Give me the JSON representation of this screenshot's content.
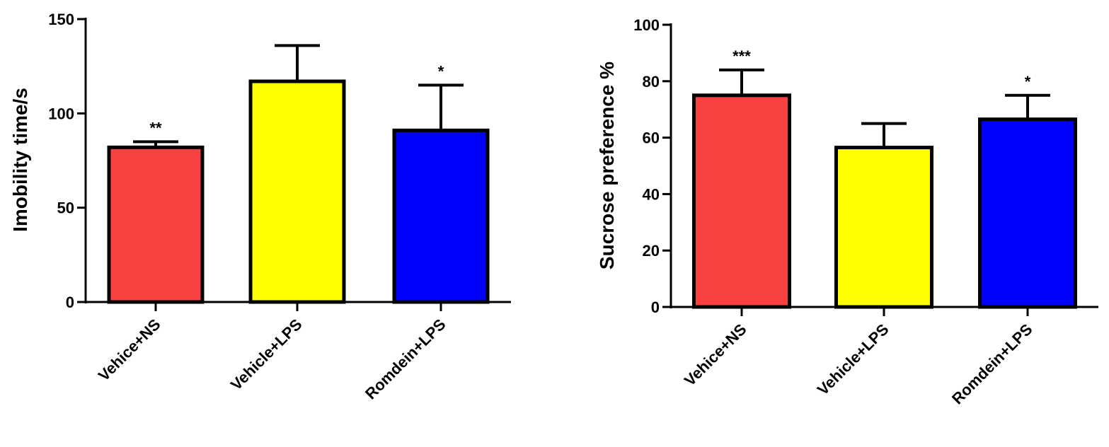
{
  "chart_data": [
    {
      "type": "bar",
      "title": "",
      "xlabel": "",
      "ylabel": "Imobility time/s",
      "ylim": [
        0,
        150
      ],
      "yticks": [
        0,
        50,
        100,
        150
      ],
      "categories": [
        "Vehice+NS",
        "Vehicle+LPS",
        "Romdein+LPS"
      ],
      "values": [
        82,
        117,
        91
      ],
      "error_upper": [
        85,
        136,
        115
      ],
      "colors": [
        "#f94141",
        "#ffff00",
        "#0000ff"
      ],
      "significance": [
        "**",
        "",
        "*"
      ]
    },
    {
      "type": "bar",
      "title": "",
      "xlabel": "",
      "ylabel": "Sucrose preference %",
      "ylim": [
        0,
        100
      ],
      "yticks": [
        0,
        20,
        40,
        60,
        80,
        100
      ],
      "categories": [
        "Vehice+NS",
        "Vehicle+LPS",
        "Romdein+LPS"
      ],
      "values": [
        75,
        56.5,
        66.5
      ],
      "error_upper": [
        84,
        65,
        75
      ],
      "colors": [
        "#f94141",
        "#ffff00",
        "#0000ff"
      ],
      "significance": [
        "***",
        "",
        "*"
      ]
    }
  ]
}
